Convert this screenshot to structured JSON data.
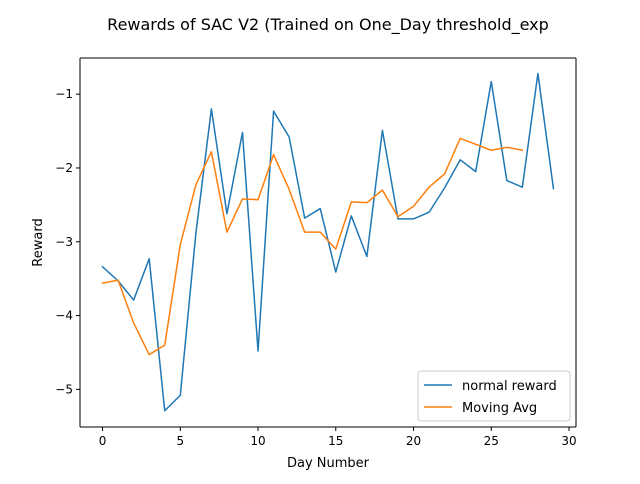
{
  "chart_data": {
    "type": "line",
    "title": "Rewards of SAC V2 (Trained on One_Day threshold_exp",
    "xlabel": "Day Number",
    "ylabel": "Reward",
    "xlim": [
      -1.45,
      30.45
    ],
    "ylim": [
      -5.51,
      -0.51
    ],
    "xticks": [
      0,
      5,
      10,
      15,
      20,
      25,
      30
    ],
    "xtick_labels": [
      "0",
      "5",
      "10",
      "15",
      "20",
      "25",
      "30"
    ],
    "yticks": [
      -5,
      -4,
      -3,
      -2,
      -1
    ],
    "ytick_labels": [
      "−5",
      "−4",
      "−3",
      "−2",
      "−1"
    ],
    "grid": false,
    "legend_position": "lower-right",
    "series": [
      {
        "name": "normal reward",
        "color": "#1f77b4",
        "x": [
          0,
          1,
          2,
          3,
          4,
          5,
          6,
          7,
          8,
          9,
          10,
          11,
          12,
          13,
          14,
          15,
          16,
          17,
          18,
          19,
          20,
          21,
          22,
          23,
          24,
          25,
          26,
          27,
          28,
          29
        ],
        "values": [
          -3.34,
          -3.53,
          -3.79,
          -3.23,
          -5.29,
          -5.08,
          -2.89,
          -1.2,
          -2.62,
          -1.52,
          -4.48,
          -1.23,
          -1.58,
          -2.68,
          -2.55,
          -3.41,
          -2.65,
          -3.2,
          -1.49,
          -2.69,
          -2.69,
          -2.6,
          -2.27,
          -1.89,
          -2.05,
          -0.83,
          -2.17,
          -2.26,
          -0.72,
          -2.28
        ]
      },
      {
        "name": "Moving Avg",
        "color": "#ff7f0e",
        "x": [
          0,
          1,
          2,
          3,
          4,
          5,
          6,
          7,
          8,
          9,
          10,
          11,
          12,
          13,
          14,
          15,
          16,
          17,
          18,
          19,
          20,
          21,
          22,
          23,
          24,
          25,
          26,
          27
        ],
        "values": [
          -3.56,
          -3.52,
          -4.1,
          -4.53,
          -4.4,
          -3.04,
          -2.23,
          -1.78,
          -2.87,
          -2.42,
          -2.43,
          -1.82,
          -2.29,
          -2.87,
          -2.87,
          -3.1,
          -2.46,
          -2.47,
          -2.3,
          -2.66,
          -2.52,
          -2.26,
          -2.08,
          -1.6,
          -1.68,
          -1.76,
          -1.72,
          -1.76
        ]
      }
    ]
  }
}
